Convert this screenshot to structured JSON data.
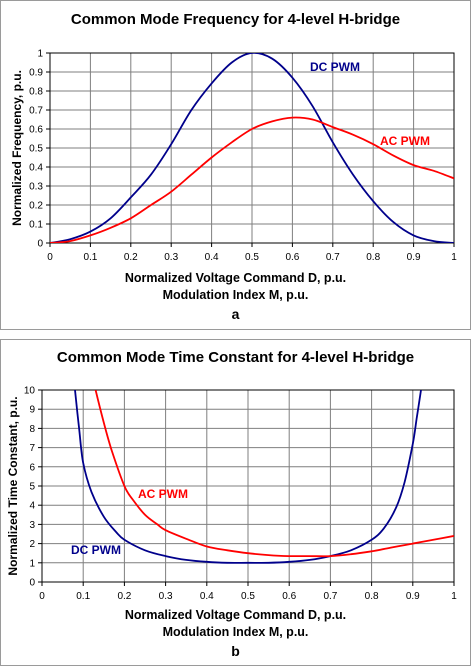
{
  "chart_data": [
    {
      "type": "line",
      "panel": "a",
      "title": "Common Mode Frequency for 4-level H-bridge",
      "ylabel": "Normalized Frequency, p.u.",
      "xlabel_lines": [
        "Normalized Voltage Command D, p.u.",
        "Modulation Index M, p.u."
      ],
      "panel_label": "a",
      "xlim": [
        0,
        1
      ],
      "ylim": [
        0,
        1
      ],
      "x_ticks": [
        0,
        0.1,
        0.2,
        0.3,
        0.4,
        0.5,
        0.6,
        0.7,
        0.8,
        0.9,
        1
      ],
      "x_tick_labels": [
        "0",
        "0.1",
        "0.2",
        "0.3",
        "0.4",
        "0.5",
        "0.6",
        "0.7",
        "0.8",
        "0.9",
        "1"
      ],
      "y_ticks": [
        0,
        0.1,
        0.2,
        0.3,
        0.4,
        0.5,
        0.6,
        0.7,
        0.8,
        0.9,
        1
      ],
      "y_tick_labels": [
        "0",
        "0.1",
        "0.2",
        "0.3",
        "0.4",
        "0.5",
        "0.6",
        "0.7",
        "0.8",
        "0.9",
        "1"
      ],
      "grid": true,
      "series": [
        {
          "name": "DC PWM",
          "color": "#00008B",
          "x": [
            0,
            0.05,
            0.1,
            0.15,
            0.2,
            0.25,
            0.3,
            0.35,
            0.4,
            0.45,
            0.5,
            0.55,
            0.6,
            0.65,
            0.7,
            0.75,
            0.8,
            0.85,
            0.9,
            0.95,
            1
          ],
          "y": [
            0,
            0.02,
            0.06,
            0.13,
            0.24,
            0.36,
            0.52,
            0.7,
            0.84,
            0.95,
            1.0,
            0.97,
            0.87,
            0.72,
            0.53,
            0.36,
            0.22,
            0.11,
            0.04,
            0.01,
            0
          ]
        },
        {
          "name": "AC PWM",
          "color": "#FF0000",
          "x": [
            0,
            0.05,
            0.1,
            0.15,
            0.2,
            0.25,
            0.3,
            0.35,
            0.4,
            0.45,
            0.5,
            0.55,
            0.6,
            0.65,
            0.7,
            0.75,
            0.8,
            0.85,
            0.9,
            0.95,
            1
          ],
          "y": [
            0,
            0.01,
            0.04,
            0.08,
            0.13,
            0.2,
            0.27,
            0.36,
            0.45,
            0.53,
            0.6,
            0.64,
            0.66,
            0.65,
            0.61,
            0.57,
            0.52,
            0.46,
            0.41,
            0.38,
            0.34
          ]
        }
      ],
      "legend_labels": [
        {
          "text": "DC PWM",
          "color": "#00008B",
          "placement": "above-peak"
        },
        {
          "text": "AC PWM",
          "color": "#FF0000",
          "placement": "right"
        }
      ]
    },
    {
      "type": "line",
      "panel": "b",
      "title": "Common Mode Time Constant for 4-level H-bridge",
      "ylabel": "Normalized Time Constant, p.u.",
      "xlabel_lines": [
        "Normalized Voltage Command D, p.u.",
        "Modulation Index M, p.u."
      ],
      "panel_label": "b",
      "xlim": [
        0,
        1
      ],
      "ylim": [
        0,
        10
      ],
      "x_ticks": [
        0,
        0.1,
        0.2,
        0.3,
        0.4,
        0.5,
        0.6,
        0.7,
        0.8,
        0.9,
        1
      ],
      "x_tick_labels": [
        "0",
        "0.1",
        "0.2",
        "0.3",
        "0.4",
        "0.5",
        "0.6",
        "0.7",
        "0.8",
        "0.9",
        "1"
      ],
      "y_ticks": [
        0,
        1,
        2,
        3,
        4,
        5,
        6,
        7,
        8,
        9,
        10
      ],
      "y_tick_labels": [
        "0",
        "1",
        "2",
        "3",
        "4",
        "5",
        "6",
        "7",
        "8",
        "9",
        "10"
      ],
      "grid": true,
      "series": [
        {
          "name": "DC PWM",
          "color": "#00008B",
          "x": [
            0.08,
            0.09,
            0.1,
            0.12,
            0.15,
            0.18,
            0.2,
            0.25,
            0.3,
            0.35,
            0.4,
            0.45,
            0.5,
            0.55,
            0.6,
            0.65,
            0.7,
            0.75,
            0.8,
            0.83,
            0.86,
            0.88,
            0.9,
            0.91,
            0.92
          ],
          "y": [
            10.0,
            8.0,
            6.2,
            4.7,
            3.4,
            2.6,
            2.2,
            1.65,
            1.35,
            1.15,
            1.05,
            1.0,
            1.0,
            1.0,
            1.05,
            1.15,
            1.35,
            1.65,
            2.2,
            2.8,
            3.9,
            5.2,
            7.2,
            8.6,
            10.0
          ]
        },
        {
          "name": "AC PWM",
          "color": "#FF0000",
          "x": [
            0.13,
            0.15,
            0.17,
            0.2,
            0.22,
            0.25,
            0.28,
            0.3,
            0.35,
            0.4,
            0.45,
            0.5,
            0.55,
            0.6,
            0.65,
            0.7,
            0.75,
            0.8,
            0.85,
            0.9,
            0.95,
            1.0
          ],
          "y": [
            10.0,
            8.3,
            6.8,
            5.0,
            4.3,
            3.5,
            3.0,
            2.7,
            2.25,
            1.85,
            1.65,
            1.5,
            1.4,
            1.35,
            1.35,
            1.35,
            1.45,
            1.6,
            1.8,
            2.0,
            2.2,
            2.4
          ]
        }
      ],
      "legend_labels": [
        {
          "text": "AC PWM",
          "color": "#FF0000",
          "placement": "left-middle"
        },
        {
          "text": "DC PWM",
          "color": "#00008B",
          "placement": "left-bottom"
        }
      ]
    }
  ]
}
